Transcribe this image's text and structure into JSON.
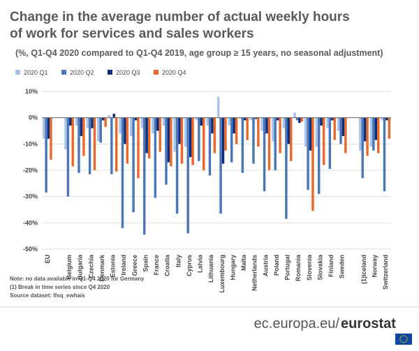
{
  "chart_data": {
    "type": "bar",
    "title": "Change in the average number of actual weekly hours",
    "title2": "of work for services and sales workers",
    "subtitle": "(%, Q1-Q4 2020 compared to Q1-Q4 2019, age group ≥ 15 years, no seasonal adjustment)",
    "categories": [
      "EU",
      null,
      "Belgium",
      "Bulgaria",
      "Czechia",
      "Denmark",
      "Estonia",
      "Ireland",
      "Greece",
      "Spain",
      "France",
      "Croatia",
      "Italy",
      "Cyprus",
      "Latvia",
      "Lithuania",
      "Luxembourg",
      "Hungary",
      "Malta",
      "Netherlands",
      "Austria",
      "Poland",
      "Portugal",
      "Romania",
      "Slovenia",
      "Slovakia",
      "Finland",
      "Sweden",
      null,
      "(1)Iceland",
      "Norway",
      "Switzerland"
    ],
    "series": [
      {
        "name": "2020 Q1",
        "color": "#a9c4e8",
        "values": [
          -8,
          null,
          -12,
          -3,
          -4,
          -9,
          1,
          -6,
          -7,
          -4,
          -6,
          -3,
          -13,
          -11,
          -1,
          -3,
          8,
          -3,
          -0.5,
          -1,
          -5,
          -9,
          -4,
          2,
          -11,
          -11,
          -4,
          -5,
          null,
          -12.5,
          -11,
          -1
        ]
      },
      {
        "name": "2020 Q2",
        "color": "#4a77b9",
        "values": [
          -28.5,
          null,
          -30,
          -21,
          -21.5,
          -9.5,
          -21.5,
          -42,
          -36,
          -44.5,
          -30.5,
          -25.5,
          -36.5,
          -44,
          -16.5,
          -22,
          -36.5,
          -17,
          -21,
          -17.5,
          -28,
          -20,
          -38.5,
          -1,
          -27.5,
          -29,
          -19.5,
          -10,
          null,
          -23,
          -12.5,
          -28
        ]
      },
      {
        "name": "2020 Q3",
        "color": "#0f2d78",
        "values": [
          -8,
          null,
          -3,
          -7,
          -4,
          -1,
          1.5,
          -10,
          -1,
          -13.5,
          -5,
          -17,
          -10,
          -15,
          -3,
          -6,
          -17.5,
          -6,
          -1,
          -0.5,
          -6,
          -1,
          -10,
          -2,
          -12.5,
          -3,
          -1,
          -7,
          null,
          -9,
          -8.5,
          -1
        ]
      },
      {
        "name": "2020 Q4",
        "color": "#e8692b",
        "values": [
          -16,
          null,
          -18.5,
          -14.5,
          -20,
          -3.5,
          -20.5,
          -17.5,
          -23,
          -15.5,
          -13,
          -18.5,
          -17.5,
          -18,
          -20,
          -13.5,
          -12.5,
          -10,
          -8.5,
          -11,
          -20,
          -13.5,
          -16.5,
          -1.5,
          -35.5,
          -18,
          -8.5,
          -13.5,
          null,
          -14.5,
          -13.5,
          -8
        ]
      }
    ],
    "ylim": [
      -50,
      10
    ],
    "yticks": [
      {
        "value": 10,
        "label": "10%"
      },
      {
        "value": 0,
        "label": "0%"
      },
      {
        "value": -10,
        "label": "-10%"
      },
      {
        "value": -20,
        "label": "-20%"
      },
      {
        "value": -30,
        "label": "-30%"
      },
      {
        "value": -40,
        "label": "-40%"
      },
      {
        "value": -50,
        "label": "-50%"
      }
    ],
    "grid": true,
    "notes": [
      "Note: no data available in Q1-Q4 2020 for Germany",
      "(1) Break in time series since Q4 2020",
      "Source dataset: lfsq_ewhais"
    ],
    "footer": [
      "ec.europa.eu/",
      "eurostat"
    ]
  }
}
